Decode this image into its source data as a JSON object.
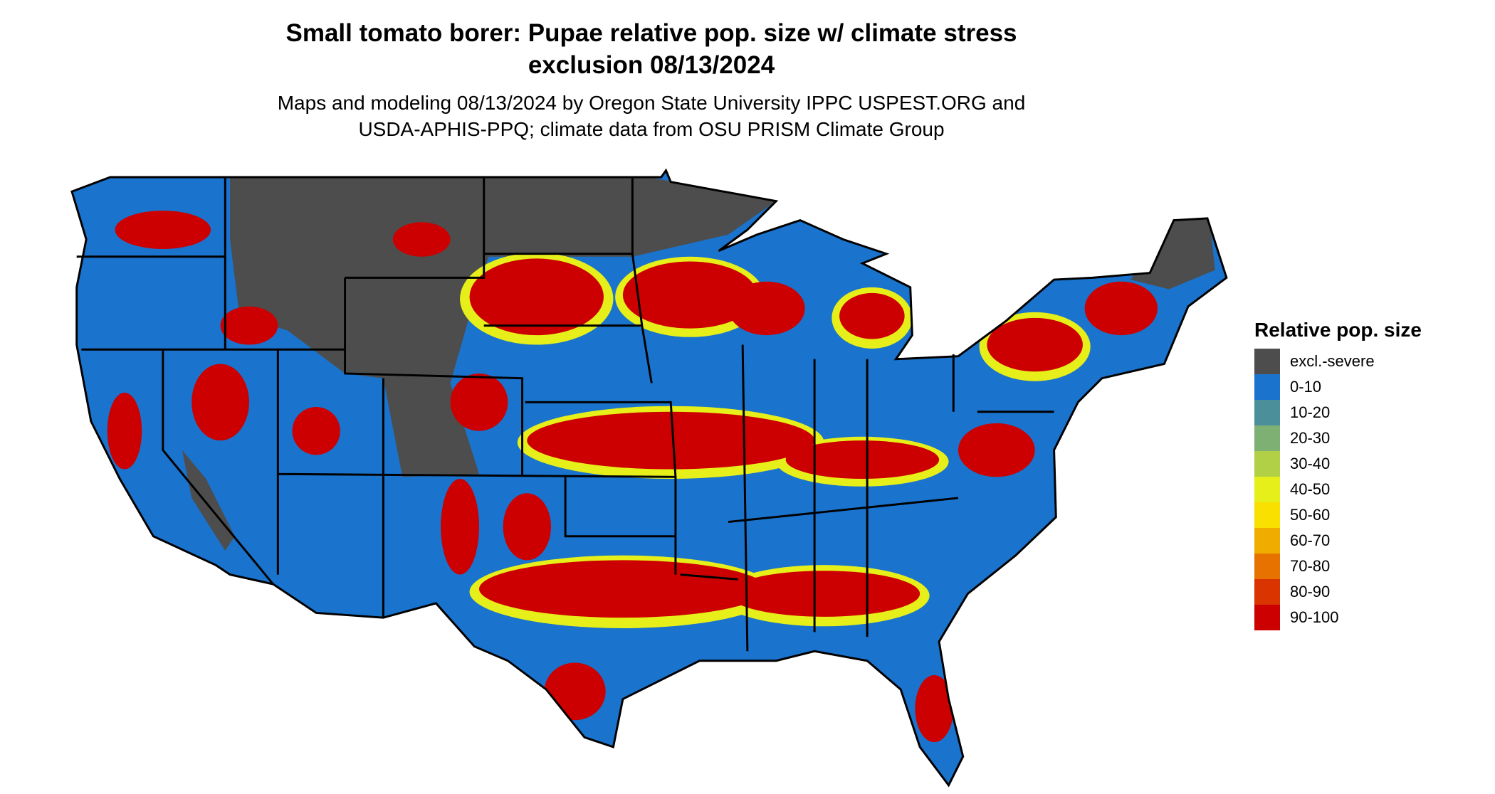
{
  "title_line1": "Small tomato borer: Pupae relative pop. size w/ climate stress",
  "title_line2": "exclusion 08/13/2024",
  "subtitle_line1": "Maps and modeling 08/13/2024 by Oregon State University IPPC USPEST.ORG and",
  "subtitle_line2": "USDA-APHIS-PPQ; climate data from OSU PRISM Climate Group",
  "legend": {
    "title": "Relative pop. size",
    "items": [
      {
        "label": "excl.-severe",
        "color": "#4d4d4d"
      },
      {
        "label": "0-10",
        "color": "#1a73cc"
      },
      {
        "label": "10-20",
        "color": "#4a8f9a"
      },
      {
        "label": "20-30",
        "color": "#7fb073"
      },
      {
        "label": "30-40",
        "color": "#b2d045"
      },
      {
        "label": "40-50",
        "color": "#e6ef19"
      },
      {
        "label": "50-60",
        "color": "#f9e000"
      },
      {
        "label": "60-70",
        "color": "#f0ad00"
      },
      {
        "label": "70-80",
        "color": "#e87200"
      },
      {
        "label": "80-90",
        "color": "#da3400"
      },
      {
        "label": "90-100",
        "color": "#cc0000"
      }
    ]
  }
}
